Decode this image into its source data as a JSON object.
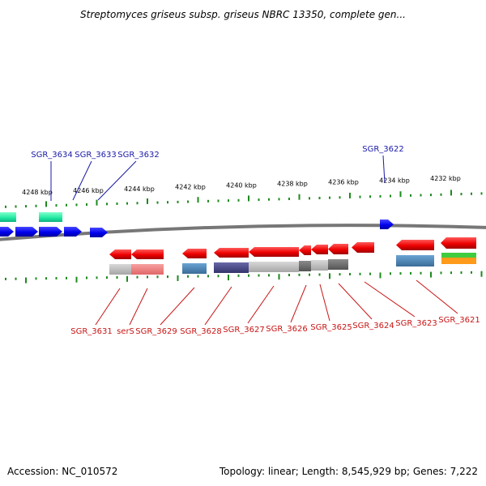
{
  "title": "Streptomyces griseus subsp. griseus NBRC 13350, complete gen...",
  "footer": {
    "accession": "Accession: NC_010572",
    "summary": "Topology: linear; Length: 8,545,929 bp; Genes: 7,222"
  },
  "colors": {
    "forward_label": "#1a1aa8",
    "reverse_label": "#c81414",
    "tick": "#1c8a1c",
    "backbone": "#7a7a7a"
  },
  "scale": {
    "ticks": [
      {
        "label": "4248 kbp",
        "kbp": 4248
      },
      {
        "label": "4246 kbp",
        "kbp": 4246
      },
      {
        "label": "4244 kbp",
        "kbp": 4244
      },
      {
        "label": "4242 kbp",
        "kbp": 4242
      },
      {
        "label": "4240 kbp",
        "kbp": 4240
      },
      {
        "label": "4238 kbp",
        "kbp": 4238
      },
      {
        "label": "4236 kbp",
        "kbp": 4236
      },
      {
        "label": "4234 kbp",
        "kbp": 4234
      },
      {
        "label": "4232 kbp",
        "kbp": 4232
      }
    ]
  },
  "forward_labels": [
    {
      "text": "SGR_3634"
    },
    {
      "text": "SGR_3633"
    },
    {
      "text": "SGR_3632"
    },
    {
      "text": "SGR_3622"
    }
  ],
  "reverse_labels": [
    {
      "text": "SGR_3631"
    },
    {
      "text": "serS"
    },
    {
      "text": "SGR_3629"
    },
    {
      "text": "SGR_3628"
    },
    {
      "text": "SGR_3627"
    },
    {
      "text": "SGR_3626"
    },
    {
      "text": "SGR_3625"
    },
    {
      "text": "SGR_3624"
    },
    {
      "text": "SGR_3623"
    },
    {
      "text": "SGR_3621"
    }
  ]
}
